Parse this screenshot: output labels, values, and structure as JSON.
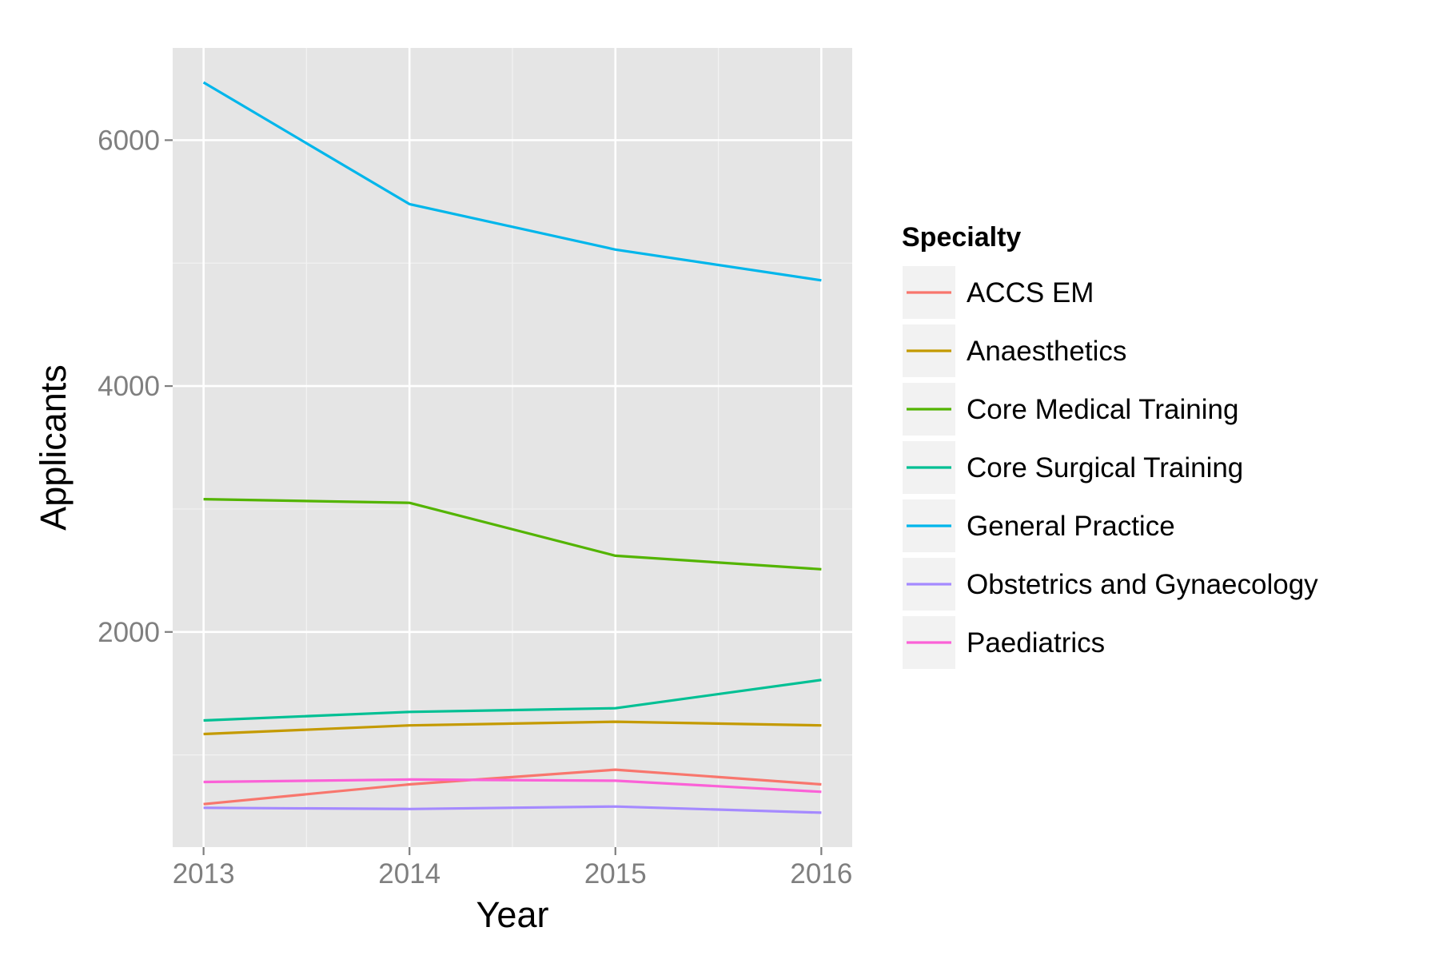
{
  "chart_data": {
    "type": "line",
    "title": "",
    "xlabel": "Year",
    "ylabel": "Applicants",
    "x": [
      2013,
      2014,
      2015,
      2016
    ],
    "x_tick_labels": [
      "2013",
      "2014",
      "2015",
      "2016"
    ],
    "y_ticks": [
      2000,
      4000,
      6000
    ],
    "y_tick_labels": [
      "2000",
      "4000",
      "6000"
    ],
    "xlim": [
      2012.85,
      2016.15
    ],
    "ylim": [
      250,
      6750
    ],
    "grid": true,
    "legend": {
      "title": "Specialty",
      "position": "right"
    },
    "series": [
      {
        "name": "ACCS EM",
        "color": "#F8766D",
        "values": [
          600,
          760,
          880,
          760
        ]
      },
      {
        "name": "Anaesthetics",
        "color": "#C49A00",
        "values": [
          1170,
          1240,
          1270,
          1240
        ]
      },
      {
        "name": "Core Medical Training",
        "color": "#53B400",
        "values": [
          3080,
          3050,
          2620,
          2510
        ]
      },
      {
        "name": "Core Surgical Training",
        "color": "#00C094",
        "values": [
          1280,
          1350,
          1380,
          1610
        ]
      },
      {
        "name": "General Practice",
        "color": "#00B6EB",
        "values": [
          6470,
          5480,
          5110,
          4860
        ]
      },
      {
        "name": "Obstetrics and Gynaecology",
        "color": "#A58AFF",
        "values": [
          570,
          560,
          580,
          530
        ]
      },
      {
        "name": "Paediatrics",
        "color": "#FB61D7",
        "values": [
          780,
          800,
          790,
          700
        ]
      }
    ]
  }
}
